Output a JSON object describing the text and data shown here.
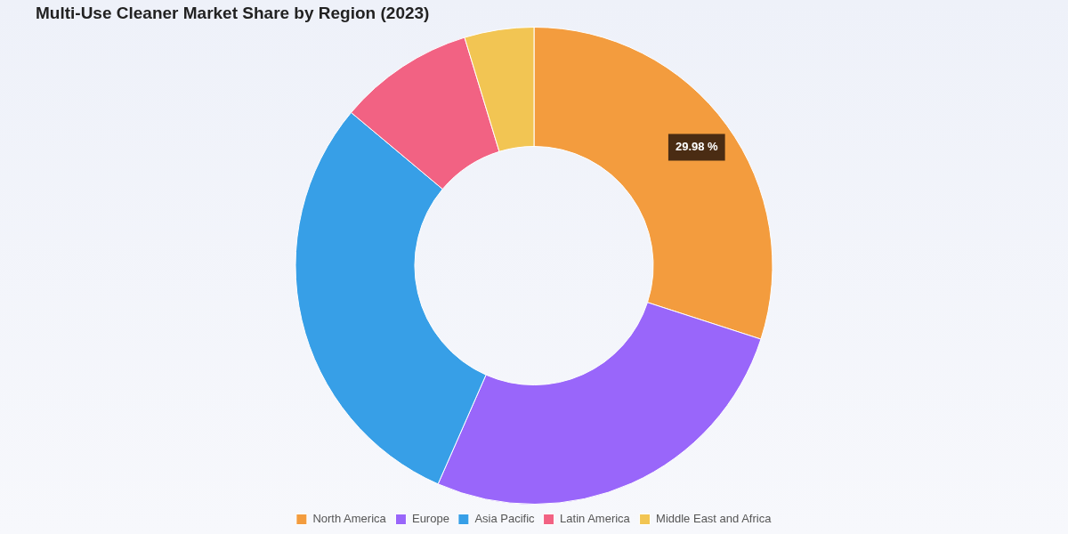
{
  "chart_data": {
    "type": "donut",
    "title": "Multi-Use Cleaner Market Share by Region (2023)",
    "categories": [
      "North America",
      "Europe",
      "Asia Pacific",
      "Latin America",
      "Middle East and Africa"
    ],
    "values": [
      29.98,
      26.6,
      29.5,
      9.2,
      4.7
    ],
    "colors": [
      "#f39c3e",
      "#9966fa",
      "#379fe7",
      "#f26283",
      "#f2c553"
    ],
    "value_labels": [
      "29.98 %",
      null,
      null,
      null,
      null
    ],
    "legend": "bottom"
  }
}
